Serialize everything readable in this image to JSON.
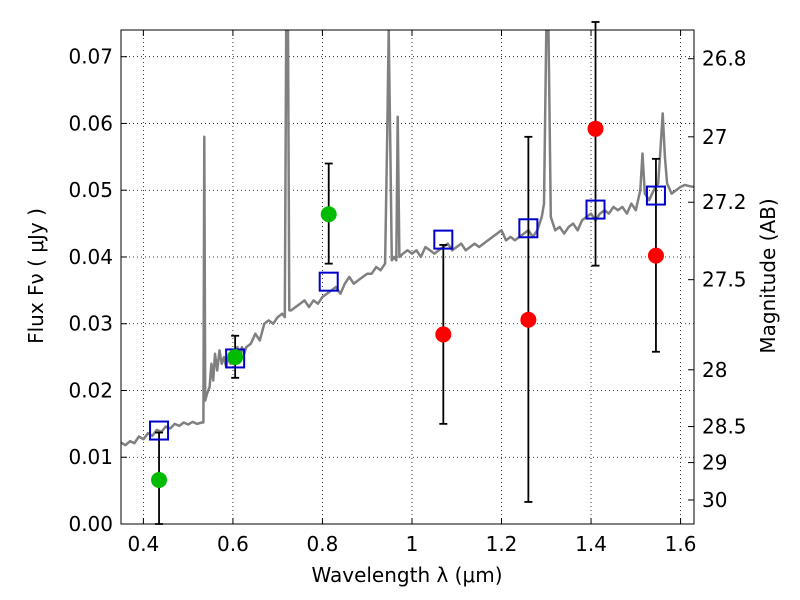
{
  "chart_data": {
    "type": "scatter",
    "xlabel": "Wavelength  λ (μm)",
    "ylabel": "Flux  Fν  ( μJy )",
    "ylabel_right": "Magnitude (AB)",
    "xlim": [
      0.35,
      1.63
    ],
    "ylim": [
      0.0,
      0.074
    ],
    "x_ticks": [
      {
        "value": 0.4,
        "label": "0.4"
      },
      {
        "value": 0.6,
        "label": "0.6"
      },
      {
        "value": 0.8,
        "label": "0.8"
      },
      {
        "value": 1.0,
        "label": "1"
      },
      {
        "value": 1.2,
        "label": "1.2"
      },
      {
        "value": 1.4,
        "label": "1.4"
      },
      {
        "value": 1.6,
        "label": "1.6"
      }
    ],
    "y_ticks": [
      {
        "value": 0.0,
        "label": "0.00"
      },
      {
        "value": 0.01,
        "label": "0.01"
      },
      {
        "value": 0.02,
        "label": "0.02"
      },
      {
        "value": 0.03,
        "label": "0.03"
      },
      {
        "value": 0.04,
        "label": "0.04"
      },
      {
        "value": 0.05,
        "label": "0.05"
      },
      {
        "value": 0.06,
        "label": "0.06"
      },
      {
        "value": 0.07,
        "label": "0.07"
      }
    ],
    "right_ticks": [
      {
        "flux": 0.0697,
        "label": "26.8"
      },
      {
        "flux": 0.058,
        "label": "27"
      },
      {
        "flux": 0.0482,
        "label": "27.2"
      },
      {
        "flux": 0.0366,
        "label": "27.5"
      },
      {
        "flux": 0.0231,
        "label": "28"
      },
      {
        "flux": 0.0146,
        "label": "28.5"
      },
      {
        "flux": 0.0092,
        "label": "29"
      },
      {
        "flux": 0.0036,
        "label": "30"
      }
    ],
    "grid": true,
    "colors": {
      "spectrum": "#808080",
      "model": "#0000cc",
      "detection": "#00bb00",
      "upper_limit": "#ff0000",
      "errorbar": "#000000",
      "grid": "#000000"
    },
    "spectrum": [
      [
        0.35,
        0.0122
      ],
      [
        0.36,
        0.0118
      ],
      [
        0.37,
        0.0124
      ],
      [
        0.38,
        0.0121
      ],
      [
        0.39,
        0.0131
      ],
      [
        0.4,
        0.0127
      ],
      [
        0.41,
        0.0136
      ],
      [
        0.42,
        0.0132
      ],
      [
        0.43,
        0.0141
      ],
      [
        0.44,
        0.0138
      ],
      [
        0.45,
        0.0146
      ],
      [
        0.46,
        0.0143
      ],
      [
        0.47,
        0.015
      ],
      [
        0.48,
        0.0147
      ],
      [
        0.49,
        0.0152
      ],
      [
        0.5,
        0.0149
      ],
      [
        0.51,
        0.0153
      ],
      [
        0.52,
        0.015
      ],
      [
        0.53,
        0.0152
      ],
      [
        0.534,
        0.0152
      ],
      [
        0.536,
        0.058
      ],
      [
        0.538,
        0.0185
      ],
      [
        0.542,
        0.0195
      ],
      [
        0.548,
        0.0205
      ],
      [
        0.552,
        0.024
      ],
      [
        0.556,
        0.0215
      ],
      [
        0.56,
        0.0255
      ],
      [
        0.565,
        0.023
      ],
      [
        0.57,
        0.026
      ],
      [
        0.575,
        0.024
      ],
      [
        0.58,
        0.025
      ],
      [
        0.585,
        0.0235
      ],
      [
        0.59,
        0.025
      ],
      [
        0.595,
        0.024
      ],
      [
        0.6,
        0.026
      ],
      [
        0.605,
        0.0245
      ],
      [
        0.61,
        0.0265
      ],
      [
        0.615,
        0.025
      ],
      [
        0.62,
        0.0265
      ],
      [
        0.625,
        0.0255
      ],
      [
        0.63,
        0.0265
      ],
      [
        0.64,
        0.027
      ],
      [
        0.65,
        0.0285
      ],
      [
        0.66,
        0.0275
      ],
      [
        0.67,
        0.03
      ],
      [
        0.68,
        0.0305
      ],
      [
        0.69,
        0.03
      ],
      [
        0.7,
        0.031
      ],
      [
        0.71,
        0.0315
      ],
      [
        0.716,
        0.031
      ],
      [
        0.719,
        0.074
      ],
      [
        0.723,
        0.074
      ],
      [
        0.726,
        0.032
      ],
      [
        0.73,
        0.032
      ],
      [
        0.74,
        0.0325
      ],
      [
        0.75,
        0.033
      ],
      [
        0.76,
        0.0335
      ],
      [
        0.77,
        0.0325
      ],
      [
        0.78,
        0.0335
      ],
      [
        0.79,
        0.033
      ],
      [
        0.8,
        0.034
      ],
      [
        0.81,
        0.0345
      ],
      [
        0.82,
        0.035
      ],
      [
        0.83,
        0.0355
      ],
      [
        0.84,
        0.0345
      ],
      [
        0.85,
        0.036
      ],
      [
        0.86,
        0.037
      ],
      [
        0.87,
        0.036
      ],
      [
        0.88,
        0.0365
      ],
      [
        0.89,
        0.037
      ],
      [
        0.9,
        0.0375
      ],
      [
        0.91,
        0.0375
      ],
      [
        0.92,
        0.0385
      ],
      [
        0.93,
        0.038
      ],
      [
        0.94,
        0.039
      ],
      [
        0.945,
        0.06
      ],
      [
        0.948,
        0.074
      ],
      [
        0.951,
        0.06
      ],
      [
        0.955,
        0.0395
      ],
      [
        0.96,
        0.04
      ],
      [
        0.965,
        0.0395
      ],
      [
        0.968,
        0.061
      ],
      [
        0.972,
        0.04
      ],
      [
        0.98,
        0.0405
      ],
      [
        0.99,
        0.041
      ],
      [
        1.0,
        0.0405
      ],
      [
        1.01,
        0.041
      ],
      [
        1.02,
        0.04
      ],
      [
        1.03,
        0.0415
      ],
      [
        1.04,
        0.041
      ],
      [
        1.05,
        0.0405
      ],
      [
        1.06,
        0.041
      ],
      [
        1.07,
        0.0415
      ],
      [
        1.08,
        0.042
      ],
      [
        1.09,
        0.041
      ],
      [
        1.1,
        0.0415
      ],
      [
        1.11,
        0.042
      ],
      [
        1.12,
        0.041
      ],
      [
        1.13,
        0.0415
      ],
      [
        1.14,
        0.042
      ],
      [
        1.15,
        0.0415
      ],
      [
        1.16,
        0.042
      ],
      [
        1.17,
        0.0425
      ],
      [
        1.18,
        0.043
      ],
      [
        1.19,
        0.0435
      ],
      [
        1.2,
        0.044
      ],
      [
        1.21,
        0.0425
      ],
      [
        1.22,
        0.043
      ],
      [
        1.23,
        0.0425
      ],
      [
        1.24,
        0.043
      ],
      [
        1.25,
        0.0435
      ],
      [
        1.26,
        0.044
      ],
      [
        1.27,
        0.043
      ],
      [
        1.28,
        0.044
      ],
      [
        1.29,
        0.046
      ],
      [
        1.295,
        0.048
      ],
      [
        1.3,
        0.074
      ],
      [
        1.305,
        0.074
      ],
      [
        1.31,
        0.046
      ],
      [
        1.32,
        0.044
      ],
      [
        1.33,
        0.0445
      ],
      [
        1.34,
        0.0435
      ],
      [
        1.35,
        0.0445
      ],
      [
        1.36,
        0.045
      ],
      [
        1.37,
        0.044
      ],
      [
        1.38,
        0.0455
      ],
      [
        1.39,
        0.046
      ],
      [
        1.4,
        0.0465
      ],
      [
        1.41,
        0.0455
      ],
      [
        1.42,
        0.0465
      ],
      [
        1.43,
        0.047
      ],
      [
        1.44,
        0.0465
      ],
      [
        1.45,
        0.0475
      ],
      [
        1.46,
        0.047
      ],
      [
        1.47,
        0.0475
      ],
      [
        1.48,
        0.0465
      ],
      [
        1.49,
        0.048
      ],
      [
        1.5,
        0.047
      ],
      [
        1.51,
        0.05
      ],
      [
        1.515,
        0.0555
      ],
      [
        1.52,
        0.0495
      ],
      [
        1.53,
        0.0485
      ],
      [
        1.54,
        0.05
      ],
      [
        1.55,
        0.051
      ],
      [
        1.555,
        0.056
      ],
      [
        1.56,
        0.0615
      ],
      [
        1.565,
        0.055
      ],
      [
        1.57,
        0.051
      ],
      [
        1.58,
        0.0495
      ],
      [
        1.59,
        0.05
      ],
      [
        1.6,
        0.0505
      ],
      [
        1.61,
        0.0508
      ],
      [
        1.62,
        0.0506
      ],
      [
        1.63,
        0.0505
      ]
    ],
    "model_points": [
      {
        "x": 0.435,
        "y": 0.014
      },
      {
        "x": 0.605,
        "y": 0.0248
      },
      {
        "x": 0.814,
        "y": 0.0363
      },
      {
        "x": 1.07,
        "y": 0.0426
      },
      {
        "x": 1.26,
        "y": 0.0443
      },
      {
        "x": 1.41,
        "y": 0.0471
      },
      {
        "x": 1.545,
        "y": 0.0492
      }
    ],
    "detections": [
      {
        "x": 0.435,
        "y": 0.0066,
        "yerr_low": 0.0066,
        "yerr_high": 0.0071
      },
      {
        "x": 0.605,
        "y": 0.025,
        "yerr_low": 0.0031,
        "yerr_high": 0.0032
      },
      {
        "x": 0.814,
        "y": 0.0464,
        "yerr_low": 0.0074,
        "yerr_high": 0.0076
      }
    ],
    "upper_limits": [
      {
        "x": 1.07,
        "y": 0.0284,
        "yerr_low": 0.0134,
        "yerr_high": 0.0134
      },
      {
        "x": 1.26,
        "y": 0.0306,
        "yerr_low": 0.0273,
        "yerr_high": 0.0274
      },
      {
        "x": 1.41,
        "y": 0.0592,
        "yerr_low": 0.0205,
        "yerr_high": 0.016
      },
      {
        "x": 1.545,
        "y": 0.0402,
        "yerr_low": 0.0144,
        "yerr_high": 0.0145
      }
    ]
  }
}
